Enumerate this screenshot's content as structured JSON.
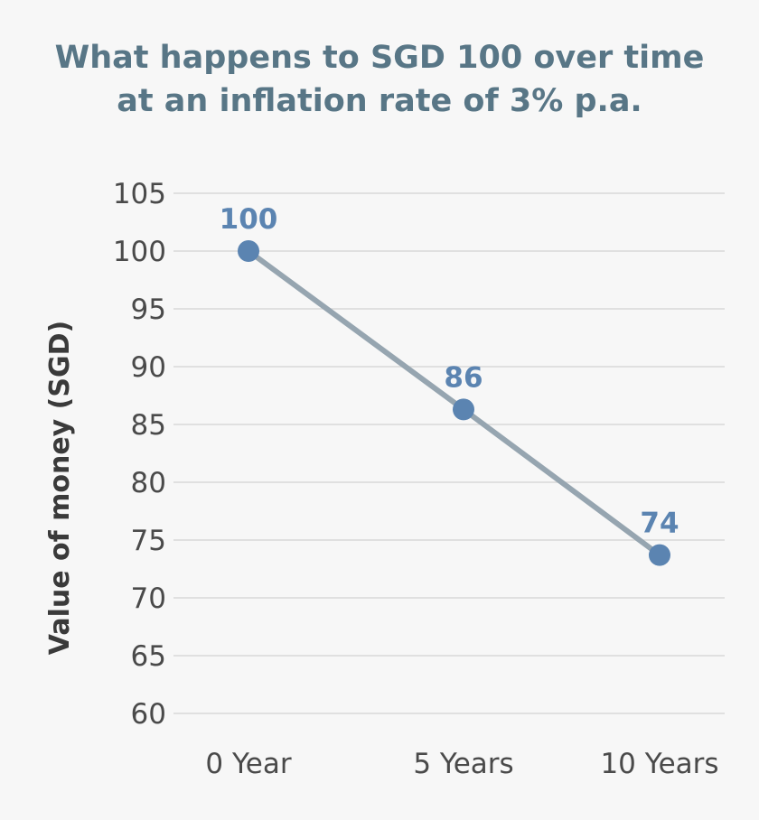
{
  "chart_data": {
    "type": "line",
    "title_lines": [
      "What happens to SGD 100 over time",
      "at an inflation rate of 3% p.a."
    ],
    "xlabel": "",
    "ylabel": "Value of money (SGD)",
    "categories": [
      "0 Year",
      "5 Years",
      "10 Years"
    ],
    "values": [
      100,
      86.3,
      73.7
    ],
    "data_labels": [
      "100",
      "86",
      "74"
    ],
    "ylim": [
      60,
      105
    ],
    "y_ticks": [
      60,
      65,
      70,
      75,
      80,
      85,
      90,
      95,
      100,
      105
    ],
    "grid": true,
    "legend": "none"
  },
  "colors": {
    "title": "#587686",
    "line": "#96a5b0",
    "marker": "#5b84b1",
    "data_label": "#5b84b1",
    "grid": "#d9d9d9",
    "tick": "#4a4a4a"
  }
}
